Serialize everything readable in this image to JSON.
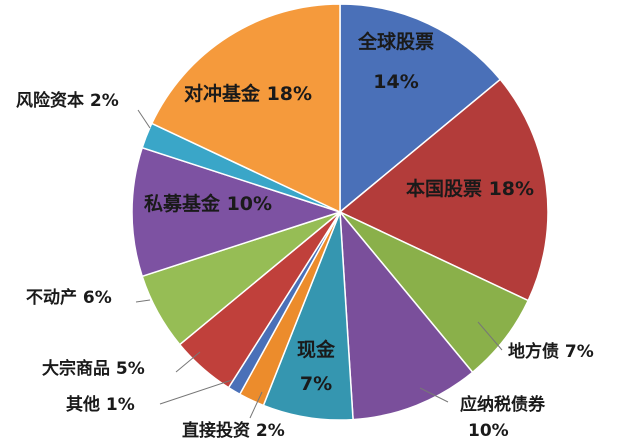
{
  "chart_data": {
    "type": "pie",
    "title": "",
    "start_angle_deg": 0,
    "direction": "clockwise",
    "slices": [
      {
        "label": "全球股票",
        "pct_label": "14%",
        "value": 14,
        "color": "#4a70b8"
      },
      {
        "label": "本国股票",
        "pct_label": "18%",
        "value": 18,
        "color": "#b33c3a"
      },
      {
        "label": "地方债",
        "pct_label": "7%",
        "value": 7,
        "color": "#8ab04a"
      },
      {
        "label": "应纳税债券",
        "pct_label": "10%",
        "value": 10,
        "color": "#7a4f9b"
      },
      {
        "label": "现金",
        "pct_label": "7%",
        "value": 7,
        "color": "#3596b0"
      },
      {
        "label": "直接投资",
        "pct_label": "2%",
        "value": 2,
        "color": "#ec8c2c"
      },
      {
        "label": "其他",
        "pct_label": "1%",
        "value": 1,
        "color": "#4a70b8"
      },
      {
        "label": "大宗商品",
        "pct_label": "5%",
        "value": 5,
        "color": "#c0403b"
      },
      {
        "label": "不动产",
        "pct_label": "6%",
        "value": 6,
        "color": "#96bd55"
      },
      {
        "label": "私募基金",
        "pct_label": "10%",
        "value": 10,
        "color": "#7d52a2"
      },
      {
        "label": "风险资本",
        "pct_label": "2%",
        "value": 2,
        "color": "#3aa6c8"
      },
      {
        "label": "对冲基金",
        "pct_label": "18%",
        "value": 18,
        "color": "#f59a3c"
      }
    ]
  }
}
